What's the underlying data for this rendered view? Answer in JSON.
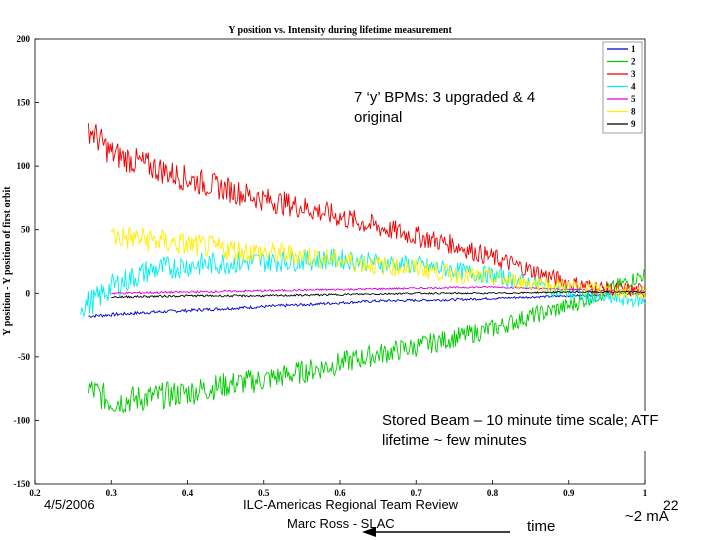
{
  "chart_data": {
    "type": "line",
    "title": "Y position vs. Intensity during lifetime measurement",
    "ylabel": "Y position - Y position of first orbit",
    "xlim": [
      0.2,
      1.0
    ],
    "ylim": [
      -150,
      200
    ],
    "xticks": [
      "0.2",
      "0.3",
      "0.4",
      "0.5",
      "0.6",
      "0.7",
      "0.8",
      "0.9",
      "1"
    ],
    "yticks": [
      "200",
      "150",
      "100",
      "50",
      "0",
      "-50",
      "-100",
      "-150"
    ],
    "grid": false,
    "legend_position": "top-right",
    "series": [
      {
        "name": "1",
        "color": "#0000cc",
        "x": [
          0.27,
          0.35,
          0.45,
          0.55,
          0.65,
          0.75,
          0.85,
          0.95,
          1.0
        ],
        "values": [
          -18,
          -15,
          -12,
          -9,
          -6,
          -5,
          -3,
          -1,
          0
        ],
        "noise": 1.2
      },
      {
        "name": "2",
        "color": "#00cc00",
        "x": [
          0.27,
          0.3,
          0.35,
          0.4,
          0.45,
          0.5,
          0.55,
          0.6,
          0.65,
          0.7,
          0.75,
          0.8,
          0.85,
          0.9,
          0.95,
          1.0
        ],
        "values": [
          -75,
          -85,
          -82,
          -78,
          -72,
          -68,
          -62,
          -55,
          -48,
          -42,
          -35,
          -28,
          -18,
          -10,
          2,
          15
        ],
        "noise": 10
      },
      {
        "name": "3",
        "color": "#ee0000",
        "x": [
          0.27,
          0.3,
          0.35,
          0.4,
          0.45,
          0.5,
          0.55,
          0.6,
          0.65,
          0.7,
          0.75,
          0.8,
          0.85,
          0.9,
          0.95,
          1.0
        ],
        "values": [
          130,
          110,
          100,
          90,
          82,
          74,
          68,
          60,
          52,
          45,
          38,
          28,
          18,
          8,
          3,
          2
        ],
        "noise": 10
      },
      {
        "name": "4",
        "color": "#00eeee",
        "x": [
          0.26,
          0.28,
          0.3,
          0.35,
          0.4,
          0.45,
          0.5,
          0.55,
          0.6,
          0.65,
          0.7,
          0.75,
          0.8,
          0.85,
          0.9,
          0.95,
          1.0
        ],
        "values": [
          -10,
          -5,
          5,
          18,
          22,
          24,
          25,
          26,
          27,
          24,
          22,
          18,
          14,
          8,
          0,
          -4,
          -6
        ],
        "noise": 9
      },
      {
        "name": "5",
        "color": "#dd00dd",
        "x": [
          0.3,
          0.4,
          0.5,
          0.6,
          0.7,
          0.8,
          0.9,
          1.0
        ],
        "values": [
          0,
          1,
          2,
          3,
          4,
          5,
          3,
          2
        ],
        "noise": 0.8
      },
      {
        "name": "8",
        "color": "#ffee00",
        "x": [
          0.3,
          0.35,
          0.4,
          0.45,
          0.5,
          0.55,
          0.6,
          0.65,
          0.7,
          0.75,
          0.8,
          0.85,
          0.9,
          0.95,
          1.0
        ],
        "values": [
          45,
          42,
          38,
          35,
          32,
          30,
          26,
          22,
          20,
          15,
          12,
          8,
          5,
          2,
          0
        ],
        "noise": 9
      },
      {
        "name": "9",
        "color": "#000000",
        "x": [
          0.3,
          0.4,
          0.5,
          0.6,
          0.7,
          0.8,
          0.9,
          1.0
        ],
        "values": [
          -3,
          -2,
          -2,
          -1,
          0,
          0,
          1,
          1
        ],
        "noise": 0.8
      }
    ]
  },
  "annotations": {
    "bpm_note": "7 ‘y’ BPMs: 3 upgraded & 4 original",
    "beam_note": "Stored Beam – 10 minute time scale; ATF lifetime ~ few minutes"
  },
  "footer": {
    "date": "4/5/2006",
    "review": "ILC-Americas Regional Team Review",
    "author": "Marc Ross - SLAC",
    "page": "22",
    "time_label": "time",
    "current_label": "~2 mA"
  }
}
